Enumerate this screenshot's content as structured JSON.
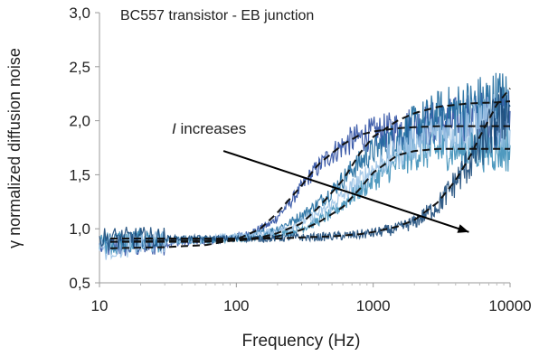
{
  "chart_data": {
    "type": "line",
    "title": "BC557 transistor - EB junction",
    "xlabel": "Frequency (Hz)",
    "ylabel": "γ normalized diffusion noise",
    "x_scale": "log",
    "xlim": [
      10,
      10000
    ],
    "ylim": [
      0.5,
      3.0
    ],
    "x_ticks": [
      10,
      100,
      1000,
      10000
    ],
    "x_tick_labels": [
      "10",
      "100",
      "1000",
      "10000"
    ],
    "y_ticks": [
      0.5,
      1.0,
      1.5,
      2.0,
      2.5,
      3.0
    ],
    "y_tick_labels": [
      "0,5",
      "1,0",
      "1,5",
      "2,0",
      "2,5",
      "3,0"
    ],
    "grid": false,
    "annotation": {
      "prefix": "I",
      "text": " increases",
      "arrow_from": [
        500,
        1.72
      ],
      "arrow_to": [
        5000,
        0.97
      ]
    },
    "series": [
      {
        "color": "#2e4fa3",
        "x": [
          12,
          20,
          30,
          50,
          80,
          120,
          180,
          250,
          350,
          500,
          700,
          1000,
          1500,
          2000,
          3000,
          5000,
          8000,
          10000
        ],
        "values": [
          0.83,
          0.84,
          0.86,
          0.88,
          0.9,
          0.95,
          1.05,
          1.25,
          1.5,
          1.7,
          1.82,
          1.88,
          1.92,
          1.95,
          1.97,
          2.0,
          2.02,
          2.03
        ]
      },
      {
        "color": "#1f6b9e",
        "x": [
          12,
          20,
          30,
          50,
          80,
          120,
          180,
          250,
          350,
          500,
          700,
          1000,
          1500,
          2000,
          3000,
          5000,
          8000,
          10000
        ],
        "values": [
          0.88,
          0.89,
          0.9,
          0.9,
          0.91,
          0.93,
          0.98,
          1.06,
          1.18,
          1.35,
          1.55,
          1.72,
          1.85,
          1.95,
          2.05,
          2.12,
          2.17,
          2.18
        ]
      },
      {
        "color": "#3d8fb8",
        "x": [
          12,
          20,
          30,
          50,
          80,
          120,
          180,
          250,
          350,
          500,
          700,
          1000,
          1500,
          2000,
          3000,
          5000,
          8000,
          10000
        ],
        "values": [
          0.87,
          0.88,
          0.88,
          0.89,
          0.9,
          0.91,
          0.93,
          0.97,
          1.04,
          1.14,
          1.3,
          1.45,
          1.6,
          1.7,
          1.73,
          1.74,
          1.74,
          1.75
        ]
      },
      {
        "color": "#9cc3e6",
        "x": [
          12,
          20,
          30,
          50,
          80,
          120,
          180,
          250,
          350,
          500,
          700,
          1000,
          1500,
          2000,
          3000,
          5000,
          8000,
          10000
        ],
        "values": [
          0.82,
          0.86,
          0.88,
          0.9,
          0.92,
          0.94,
          0.97,
          1.02,
          1.1,
          1.22,
          1.38,
          1.55,
          1.7,
          1.8,
          1.88,
          1.94,
          1.98,
          2.0
        ]
      },
      {
        "color": "#1b4a7a",
        "x": [
          12,
          20,
          30,
          50,
          80,
          120,
          180,
          250,
          350,
          500,
          700,
          1000,
          1500,
          2000,
          3000,
          5000,
          8000,
          10000
        ],
        "values": [
          0.91,
          0.91,
          0.91,
          0.91,
          0.91,
          0.91,
          0.91,
          0.92,
          0.92,
          0.93,
          0.94,
          0.96,
          1.0,
          1.06,
          1.22,
          1.6,
          2.0,
          2.15
        ]
      }
    ],
    "fit_curves": [
      {
        "style": "dashed",
        "x": [
          12,
          30,
          60,
          100,
          150,
          200,
          300,
          400,
          600,
          800,
          1000,
          1500,
          2000,
          3000,
          5000,
          10000
        ],
        "values": [
          0.82,
          0.83,
          0.85,
          0.9,
          1.0,
          1.15,
          1.4,
          1.6,
          1.78,
          1.87,
          1.9,
          1.93,
          1.94,
          1.95,
          1.95,
          1.95
        ]
      },
      {
        "style": "dashed",
        "x": [
          12,
          30,
          60,
          100,
          150,
          200,
          300,
          400,
          600,
          800,
          1000,
          1500,
          2000,
          3000,
          5000,
          8000,
          10000
        ],
        "values": [
          0.88,
          0.89,
          0.89,
          0.9,
          0.92,
          0.96,
          1.05,
          1.2,
          1.45,
          1.7,
          1.85,
          2.0,
          2.07,
          2.13,
          2.16,
          2.17,
          2.18
        ]
      },
      {
        "style": "dashed",
        "x": [
          12,
          30,
          60,
          100,
          150,
          200,
          300,
          400,
          600,
          800,
          1000,
          1500,
          2000,
          3000,
          5000,
          10000
        ],
        "values": [
          0.88,
          0.88,
          0.88,
          0.89,
          0.91,
          0.93,
          0.99,
          1.06,
          1.2,
          1.37,
          1.52,
          1.68,
          1.72,
          1.74,
          1.74,
          1.74
        ]
      },
      {
        "style": "dashed",
        "x": [
          12,
          30,
          60,
          100,
          200,
          300,
          500,
          800,
          1000,
          1500,
          2000,
          3000,
          4000,
          5000,
          6000,
          8000,
          10000
        ],
        "values": [
          0.91,
          0.91,
          0.91,
          0.91,
          0.91,
          0.92,
          0.93,
          0.95,
          0.97,
          1.02,
          1.08,
          1.25,
          1.45,
          1.65,
          1.85,
          2.15,
          2.3
        ]
      }
    ]
  }
}
